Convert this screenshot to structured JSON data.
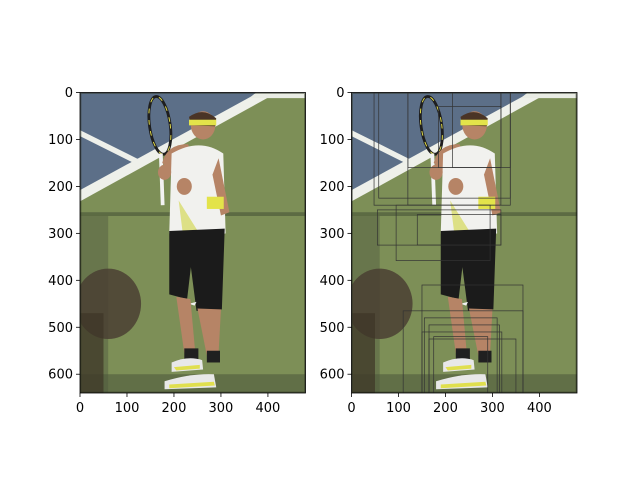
{
  "chart_data": [
    {
      "type": "image",
      "panel": "left",
      "image_size": [
        480,
        640
      ],
      "xlim": [
        0,
        480
      ],
      "ylim": [
        640,
        0
      ],
      "xticks": [
        0,
        100,
        200,
        300,
        400
      ],
      "yticks": [
        0,
        100,
        200,
        300,
        400,
        500,
        600
      ],
      "xtick_labels": [
        "0",
        "100",
        "200",
        "300",
        "400"
      ],
      "ytick_labels": [
        "0",
        "100",
        "200",
        "300",
        "400",
        "500",
        "600"
      ],
      "content": "tennis player on court holding racket"
    },
    {
      "type": "image-with-boxes",
      "panel": "right",
      "image_size": [
        480,
        640
      ],
      "xlim": [
        0,
        480
      ],
      "ylim": [
        640,
        0
      ],
      "xticks": [
        0,
        100,
        200,
        300,
        400
      ],
      "yticks": [
        0,
        100,
        200,
        300,
        400,
        500,
        600
      ],
      "xtick_labels": [
        "0",
        "100",
        "200",
        "300",
        "400"
      ],
      "ytick_labels": [
        "0",
        "100",
        "200",
        "300",
        "400",
        "500",
        "600"
      ],
      "box_color": "#333333",
      "boxes": [
        [
          48,
          0,
          318,
          240
        ],
        [
          58,
          0,
          338,
          225
        ],
        [
          120,
          0,
          338,
          240
        ],
        [
          120,
          0,
          318,
          160
        ],
        [
          185,
          30,
          318,
          160
        ],
        [
          215,
          0,
          338,
          160
        ],
        [
          55,
          250,
          318,
          325
        ],
        [
          95,
          240,
          295,
          358
        ],
        [
          140,
          260,
          318,
          325
        ],
        [
          150,
          410,
          365,
          640
        ],
        [
          110,
          465,
          365,
          640
        ],
        [
          155,
          480,
          310,
          640
        ],
        [
          165,
          495,
          315,
          640
        ],
        [
          150,
          510,
          320,
          640
        ],
        [
          175,
          520,
          290,
          640
        ],
        [
          165,
          525,
          350,
          640
        ]
      ]
    }
  ]
}
